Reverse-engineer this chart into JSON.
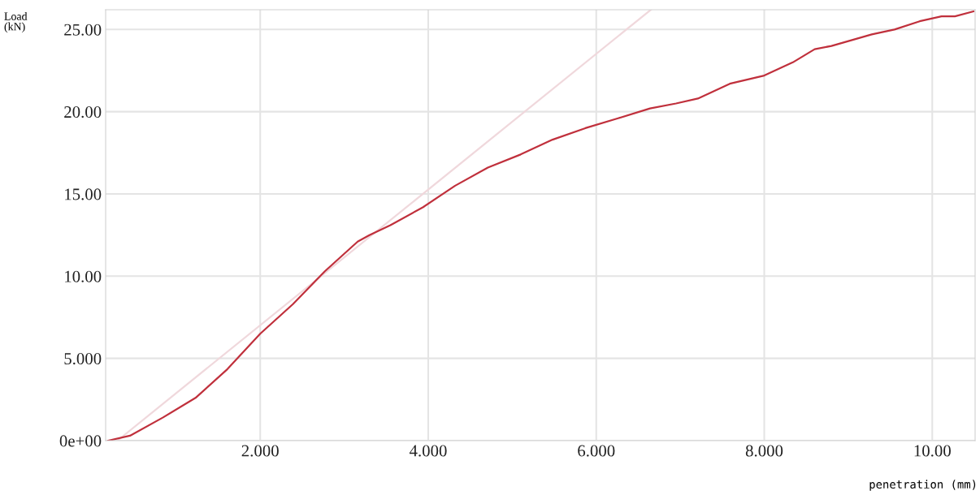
{
  "chart_data": {
    "type": "line",
    "xlabel": "penetration (mm)",
    "ylabel": "Load\n(kN)",
    "xlim": [
      0.16,
      10.51
    ],
    "ylim": [
      0,
      26.2
    ],
    "xticks": [
      {
        "value": 2,
        "label": "2.000"
      },
      {
        "value": 4,
        "label": "4.000"
      },
      {
        "value": 6,
        "label": "6.000"
      },
      {
        "value": 8,
        "label": "8.000"
      },
      {
        "value": 10,
        "label": "10.00"
      }
    ],
    "yticks": [
      {
        "value": 0,
        "label": "0e+00"
      },
      {
        "value": 5,
        "label": "5.000"
      },
      {
        "value": 10,
        "label": "10.00"
      },
      {
        "value": 15,
        "label": "15.00"
      },
      {
        "value": 20,
        "label": "20.00"
      },
      {
        "value": 25,
        "label": "25.00"
      }
    ],
    "grid": true,
    "marker": "none",
    "line_style": "solid",
    "series": [
      {
        "color": "#f0d8dc",
        "x": [
          0.3,
          6.65
        ],
        "values": [
          0,
          26.2
        ]
      },
      {
        "color": "#c0303c",
        "x": [
          0.19,
          0.45,
          0.84,
          1.23,
          1.61,
          2.0,
          2.39,
          2.77,
          3.16,
          3.3,
          3.55,
          3.94,
          4.32,
          4.71,
          5.1,
          5.48,
          5.87,
          6.26,
          6.64,
          6.95,
          7.21,
          7.59,
          8.0,
          8.34,
          8.6,
          8.8,
          9.28,
          9.55,
          9.85,
          10.11,
          10.27,
          10.49
        ],
        "values": [
          0,
          0.3,
          1.4,
          2.6,
          4.35,
          6.5,
          8.3,
          10.3,
          12.1,
          12.5,
          13.1,
          14.2,
          15.5,
          16.6,
          17.4,
          18.3,
          19.0,
          19.6,
          20.2,
          20.5,
          20.8,
          21.7,
          22.2,
          23.0,
          23.8,
          24.0,
          24.7,
          25.0,
          25.5,
          25.8,
          25.8,
          26.1
        ]
      }
    ]
  }
}
